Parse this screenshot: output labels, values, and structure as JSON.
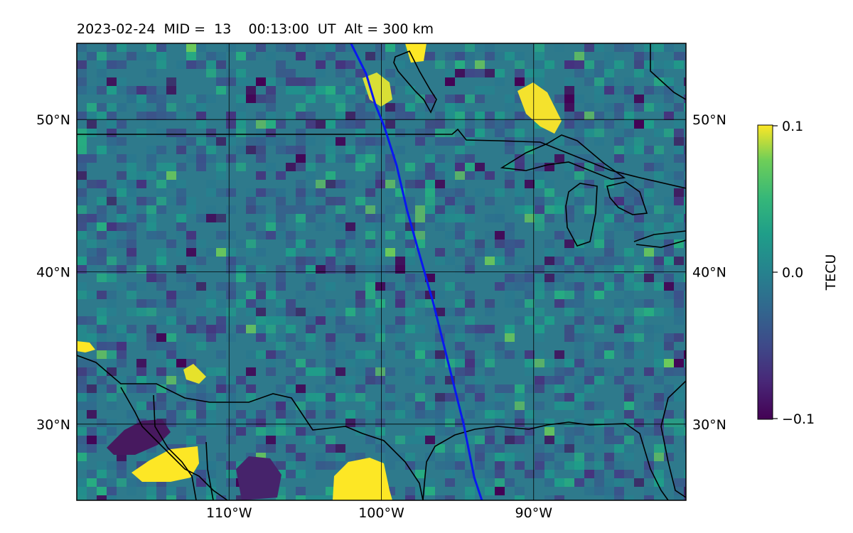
{
  "title": "2023-02-24  MID =  13    00:13:00  UT  Alt = 300 km",
  "map": {
    "lon_range": [
      -120,
      -80
    ],
    "lat_range": [
      25,
      55
    ],
    "meridians": [
      -110,
      -100,
      -90
    ],
    "parallels": [
      30,
      40,
      50
    ],
    "lon_labels": [
      "110°W",
      "100°W",
      "90°W"
    ],
    "lat_labels": [
      "30°N",
      "40°N",
      "50°N"
    ],
    "field_quantity": "TEC perturbation",
    "track_color": "#0a18f0",
    "track": [
      [
        -102.0,
        55.0
      ],
      [
        -101.0,
        53.0
      ],
      [
        -100.4,
        51.0
      ],
      [
        -99.8,
        49.5
      ],
      [
        -99.0,
        47.0
      ],
      [
        -98.3,
        44.0
      ],
      [
        -97.6,
        41.5
      ],
      [
        -96.6,
        38.0
      ],
      [
        -95.6,
        34.0
      ],
      [
        -94.6,
        30.0
      ],
      [
        -93.9,
        26.5
      ],
      [
        -93.4,
        25.0
      ]
    ]
  },
  "colorbar": {
    "label": "TECU",
    "colormap": "viridis",
    "vmin": -0.1,
    "vmax": 0.1,
    "ticks": [
      "0.1",
      "0.0",
      "−0.1"
    ]
  }
}
